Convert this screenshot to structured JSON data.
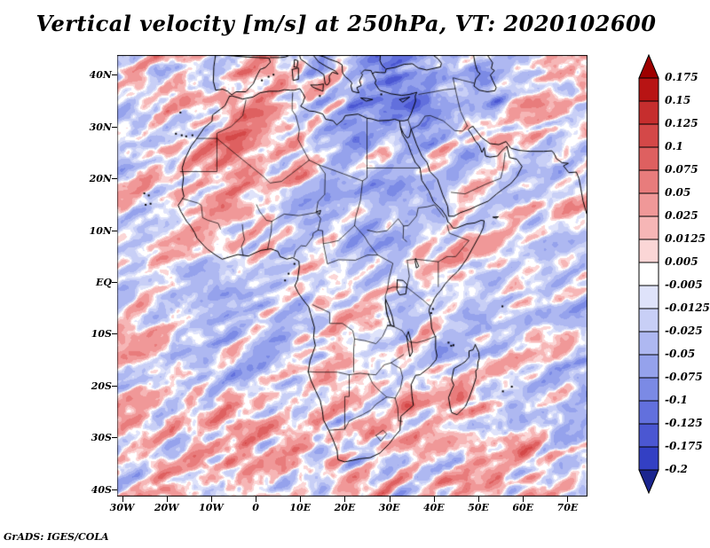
{
  "title": "Vertical velocity [m/s] at 250hPa, VT: 2020102600",
  "attribution": "GrADS: IGES/COLA",
  "chart_data": {
    "type": "heatmap",
    "title": "Vertical velocity [m/s] at 250hPa, VT: 2020102600",
    "variable": "Vertical velocity",
    "units": "m/s",
    "pressure_level": "250hPa",
    "valid_time": "2020102600",
    "region": "Africa / surrounding oceans, Europe and Middle East",
    "x_ticks": [
      "30W",
      "20W",
      "10W",
      "0",
      "10E",
      "20E",
      "30E",
      "40E",
      "50E",
      "60E",
      "70E"
    ],
    "x_tick_lons": [
      -30,
      -20,
      -10,
      0,
      10,
      20,
      30,
      40,
      50,
      60,
      70
    ],
    "y_ticks": [
      "40N",
      "30N",
      "20N",
      "10N",
      "EQ",
      "10S",
      "20S",
      "30S",
      "40S"
    ],
    "y_tick_lats": [
      40,
      30,
      20,
      10,
      0,
      -10,
      -20,
      -30,
      -40
    ],
    "lon_range": [
      -31.1,
      74.5
    ],
    "lat_range": [
      -41.4,
      43.8
    ],
    "grid": false,
    "legend_position": "right-colorbar",
    "colorbar": {
      "labels": [
        "0.175",
        "0.15",
        "0.125",
        "0.1",
        "0.075",
        "0.05",
        "0.025",
        "0.0125",
        "0.005",
        "-0.005",
        "-0.0125",
        "-0.025",
        "-0.05",
        "-0.075",
        "-0.1",
        "-0.125",
        "-0.175",
        "-0.2"
      ],
      "levels": [
        0.175,
        0.15,
        0.125,
        0.1,
        0.075,
        0.05,
        0.025,
        0.0125,
        0.005,
        -0.005,
        -0.0125,
        -0.025,
        -0.05,
        -0.075,
        -0.1,
        -0.125,
        -0.175,
        -0.2
      ],
      "colors": [
        "#9e0000",
        "#b81414",
        "#c62e2e",
        "#d44848",
        "#de6060",
        "#e87c7c",
        "#f09898",
        "#f6b6b6",
        "#fbd6d6",
        "#ffffff",
        "#dfe3fa",
        "#c8cff6",
        "#aeb8f1",
        "#95a2ec",
        "#7b8ae5",
        "#6270dd",
        "#4b57d2",
        "#3340c4",
        "#1b258f"
      ]
    },
    "field_note": "High-frequency wave-like vertical-velocity filaments; values mostly within +/-0.1 m/s, red positive, blue negative, white near zero; black coastlines and country borders overlaid"
  },
  "colors": {
    "frame": "#000000",
    "background": "#ffffff",
    "line": "#000000"
  }
}
